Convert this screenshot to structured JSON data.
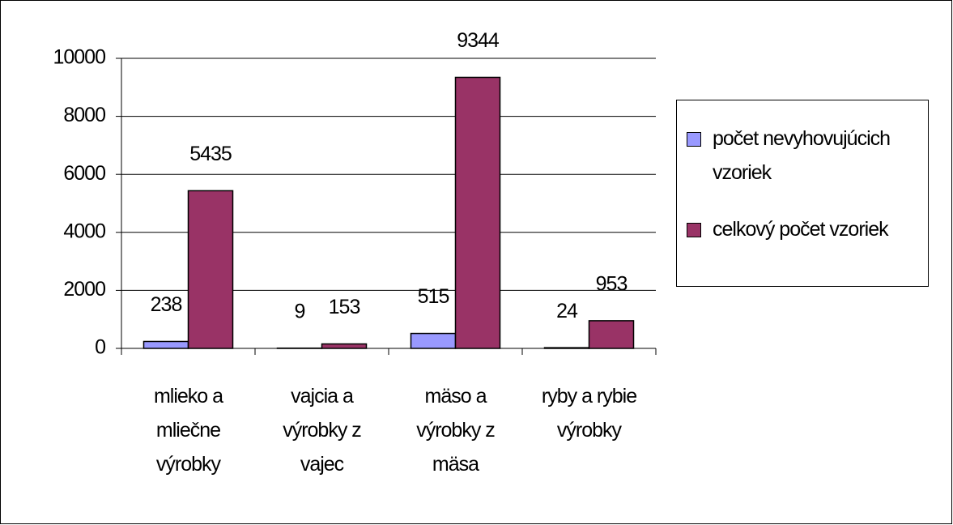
{
  "chart_data": {
    "type": "bar",
    "categories": [
      "mlieko a mliečne výrobky",
      "vajcia a výrobky z vajec",
      "mäso a výrobky z mäsa",
      "ryby a rybie výrobky"
    ],
    "series": [
      {
        "name": "počet nevyhovujúcich vzoriek",
        "color": "#9999ff",
        "values": [
          238,
          9,
          515,
          24
        ]
      },
      {
        "name": "celkový počet vzoriek",
        "color": "#993366",
        "values": [
          5435,
          153,
          9344,
          953
        ]
      }
    ],
    "ylim": [
      0,
      10000
    ],
    "yticks": [
      0,
      2000,
      4000,
      6000,
      8000,
      10000
    ],
    "grid": true,
    "legend": "right"
  }
}
